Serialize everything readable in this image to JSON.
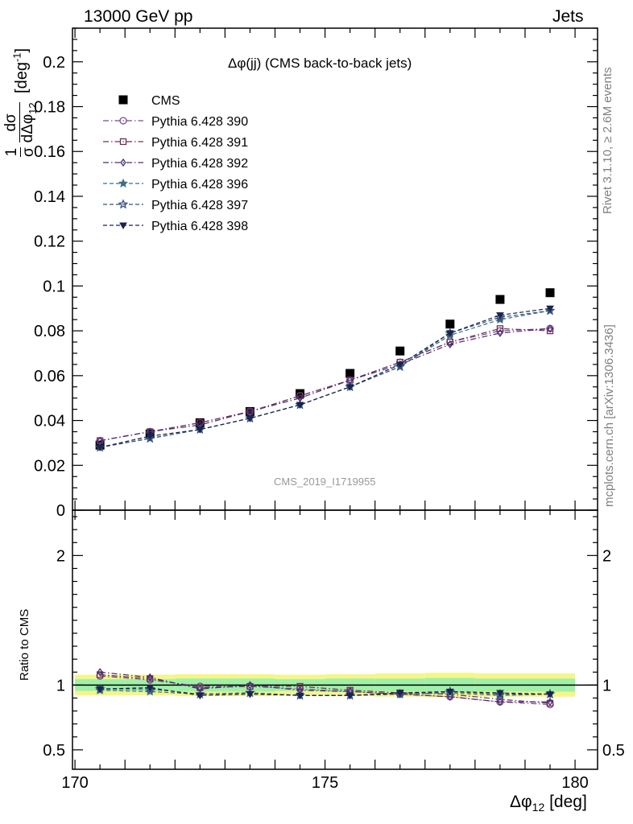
{
  "header": {
    "left": "13000 GeV pp",
    "right": "Jets"
  },
  "side_notes": {
    "rivet": "Rivet 3.1.10, ≥ 2.6M events",
    "mcplots": "mcplots.cern.ch [arXiv:1306.3436]"
  },
  "colors": {
    "cms": "#000000",
    "p390": "#7a4a8f",
    "p391": "#6b3350",
    "p392": "#4a2a7a",
    "p396": "#3d6e84",
    "p397": "#36527a",
    "p398": "#1a2450",
    "band_outer": "#f5f58a",
    "band_inner": "#9ff0a8"
  },
  "chart_data": [
    {
      "type": "scatter",
      "title": "Δφ(jj) (CMS back-to-back jets)",
      "watermark": "CMS_2019_I1719955",
      "ylabel": "1/σ dσ/dΔφ12 [deg⁻¹]",
      "ylim": [
        0,
        0.215
      ],
      "y_ticks": [
        "0",
        "0.02",
        "0.04",
        "0.06",
        "0.08",
        "0.1",
        "0.12",
        "0.14",
        "0.16",
        "0.18",
        "0.2"
      ],
      "x": [
        170.5,
        171.5,
        172.5,
        173.5,
        174.5,
        175.5,
        176.5,
        177.5,
        178.5,
        179.5
      ],
      "legend_position": "top-left",
      "series": [
        {
          "name": "CMS",
          "key": "cms",
          "marker": "square",
          "line": "none",
          "values": [
            0.029,
            0.034,
            0.039,
            0.044,
            0.052,
            0.061,
            0.071,
            0.083,
            0.094,
            0.097
          ]
        },
        {
          "name": "Pythia 6.428 390",
          "key": "p390",
          "marker": "circle",
          "line": "dashdot",
          "values": [
            0.031,
            0.035,
            0.039,
            0.044,
            0.051,
            0.058,
            0.066,
            0.075,
            0.08,
            0.081
          ]
        },
        {
          "name": "Pythia 6.428 391",
          "key": "p391",
          "marker": "square-open",
          "line": "dashdot",
          "values": [
            0.031,
            0.035,
            0.039,
            0.044,
            0.051,
            0.058,
            0.066,
            0.075,
            0.081,
            0.08
          ]
        },
        {
          "name": "Pythia 6.428 392",
          "key": "p392",
          "marker": "diamond",
          "line": "dashdot",
          "values": [
            0.031,
            0.035,
            0.038,
            0.044,
            0.05,
            0.058,
            0.065,
            0.074,
            0.079,
            0.081
          ]
        },
        {
          "name": "Pythia 6.428 396",
          "key": "p396",
          "marker": "star",
          "line": "dashed",
          "values": [
            0.028,
            0.032,
            0.036,
            0.041,
            0.047,
            0.055,
            0.064,
            0.078,
            0.085,
            0.089
          ]
        },
        {
          "name": "Pythia 6.428 397",
          "key": "p397",
          "marker": "star-open",
          "line": "dashed",
          "values": [
            0.028,
            0.032,
            0.036,
            0.041,
            0.047,
            0.055,
            0.064,
            0.079,
            0.086,
            0.089
          ]
        },
        {
          "name": "Pythia 6.428 398",
          "key": "p398",
          "marker": "triangle-down",
          "line": "dashed",
          "values": [
            0.028,
            0.033,
            0.036,
            0.041,
            0.047,
            0.055,
            0.065,
            0.079,
            0.087,
            0.09
          ]
        }
      ]
    },
    {
      "type": "scatter",
      "ylabel": "Ratio to CMS",
      "xlabel": "Δφ12 [deg]",
      "xlim": [
        169.95,
        180.45
      ],
      "x_ticks": [
        "170",
        "175",
        "180"
      ],
      "ylim": [
        0.35,
        2.35
      ],
      "y_ticks": [
        "0.5",
        "1",
        "2"
      ],
      "reference": 1,
      "band": {
        "inner": [
          0.045,
          0.045,
          0.05,
          0.05,
          0.045,
          0.05,
          0.05,
          0.055,
          0.05,
          0.05
        ],
        "outer": [
          0.08,
          0.08,
          0.085,
          0.085,
          0.08,
          0.085,
          0.09,
          0.095,
          0.09,
          0.09
        ]
      },
      "x": [
        170.5,
        171.5,
        172.5,
        173.5,
        174.5,
        175.5,
        176.5,
        177.5,
        178.5,
        179.5
      ],
      "series": [
        {
          "name": "Pythia 6.428 390",
          "key": "p390",
          "values": [
            1.07,
            1.04,
            0.99,
            0.99,
            0.97,
            0.95,
            0.93,
            0.91,
            0.87,
            0.85
          ]
        },
        {
          "name": "Pythia 6.428 391",
          "key": "p391",
          "values": [
            1.08,
            1.05,
            0.98,
            0.99,
            0.99,
            0.96,
            0.94,
            0.93,
            0.89,
            0.86
          ]
        },
        {
          "name": "Pythia 6.428 392",
          "key": "p392",
          "values": [
            1.1,
            1.06,
            0.97,
            1.0,
            0.96,
            0.95,
            0.93,
            0.91,
            0.87,
            0.87
          ]
        },
        {
          "name": "Pythia 6.428 396",
          "key": "p396",
          "values": [
            0.96,
            0.95,
            0.93,
            0.94,
            0.92,
            0.92,
            0.93,
            0.94,
            0.92,
            0.93
          ]
        },
        {
          "name": "Pythia 6.428 397",
          "key": "p397",
          "values": [
            0.97,
            0.97,
            0.93,
            0.94,
            0.92,
            0.92,
            0.93,
            0.95,
            0.93,
            0.93
          ]
        },
        {
          "name": "Pythia 6.428 398",
          "key": "p398",
          "values": [
            0.97,
            0.98,
            0.92,
            0.93,
            0.92,
            0.92,
            0.94,
            0.95,
            0.94,
            0.93
          ]
        }
      ]
    }
  ]
}
